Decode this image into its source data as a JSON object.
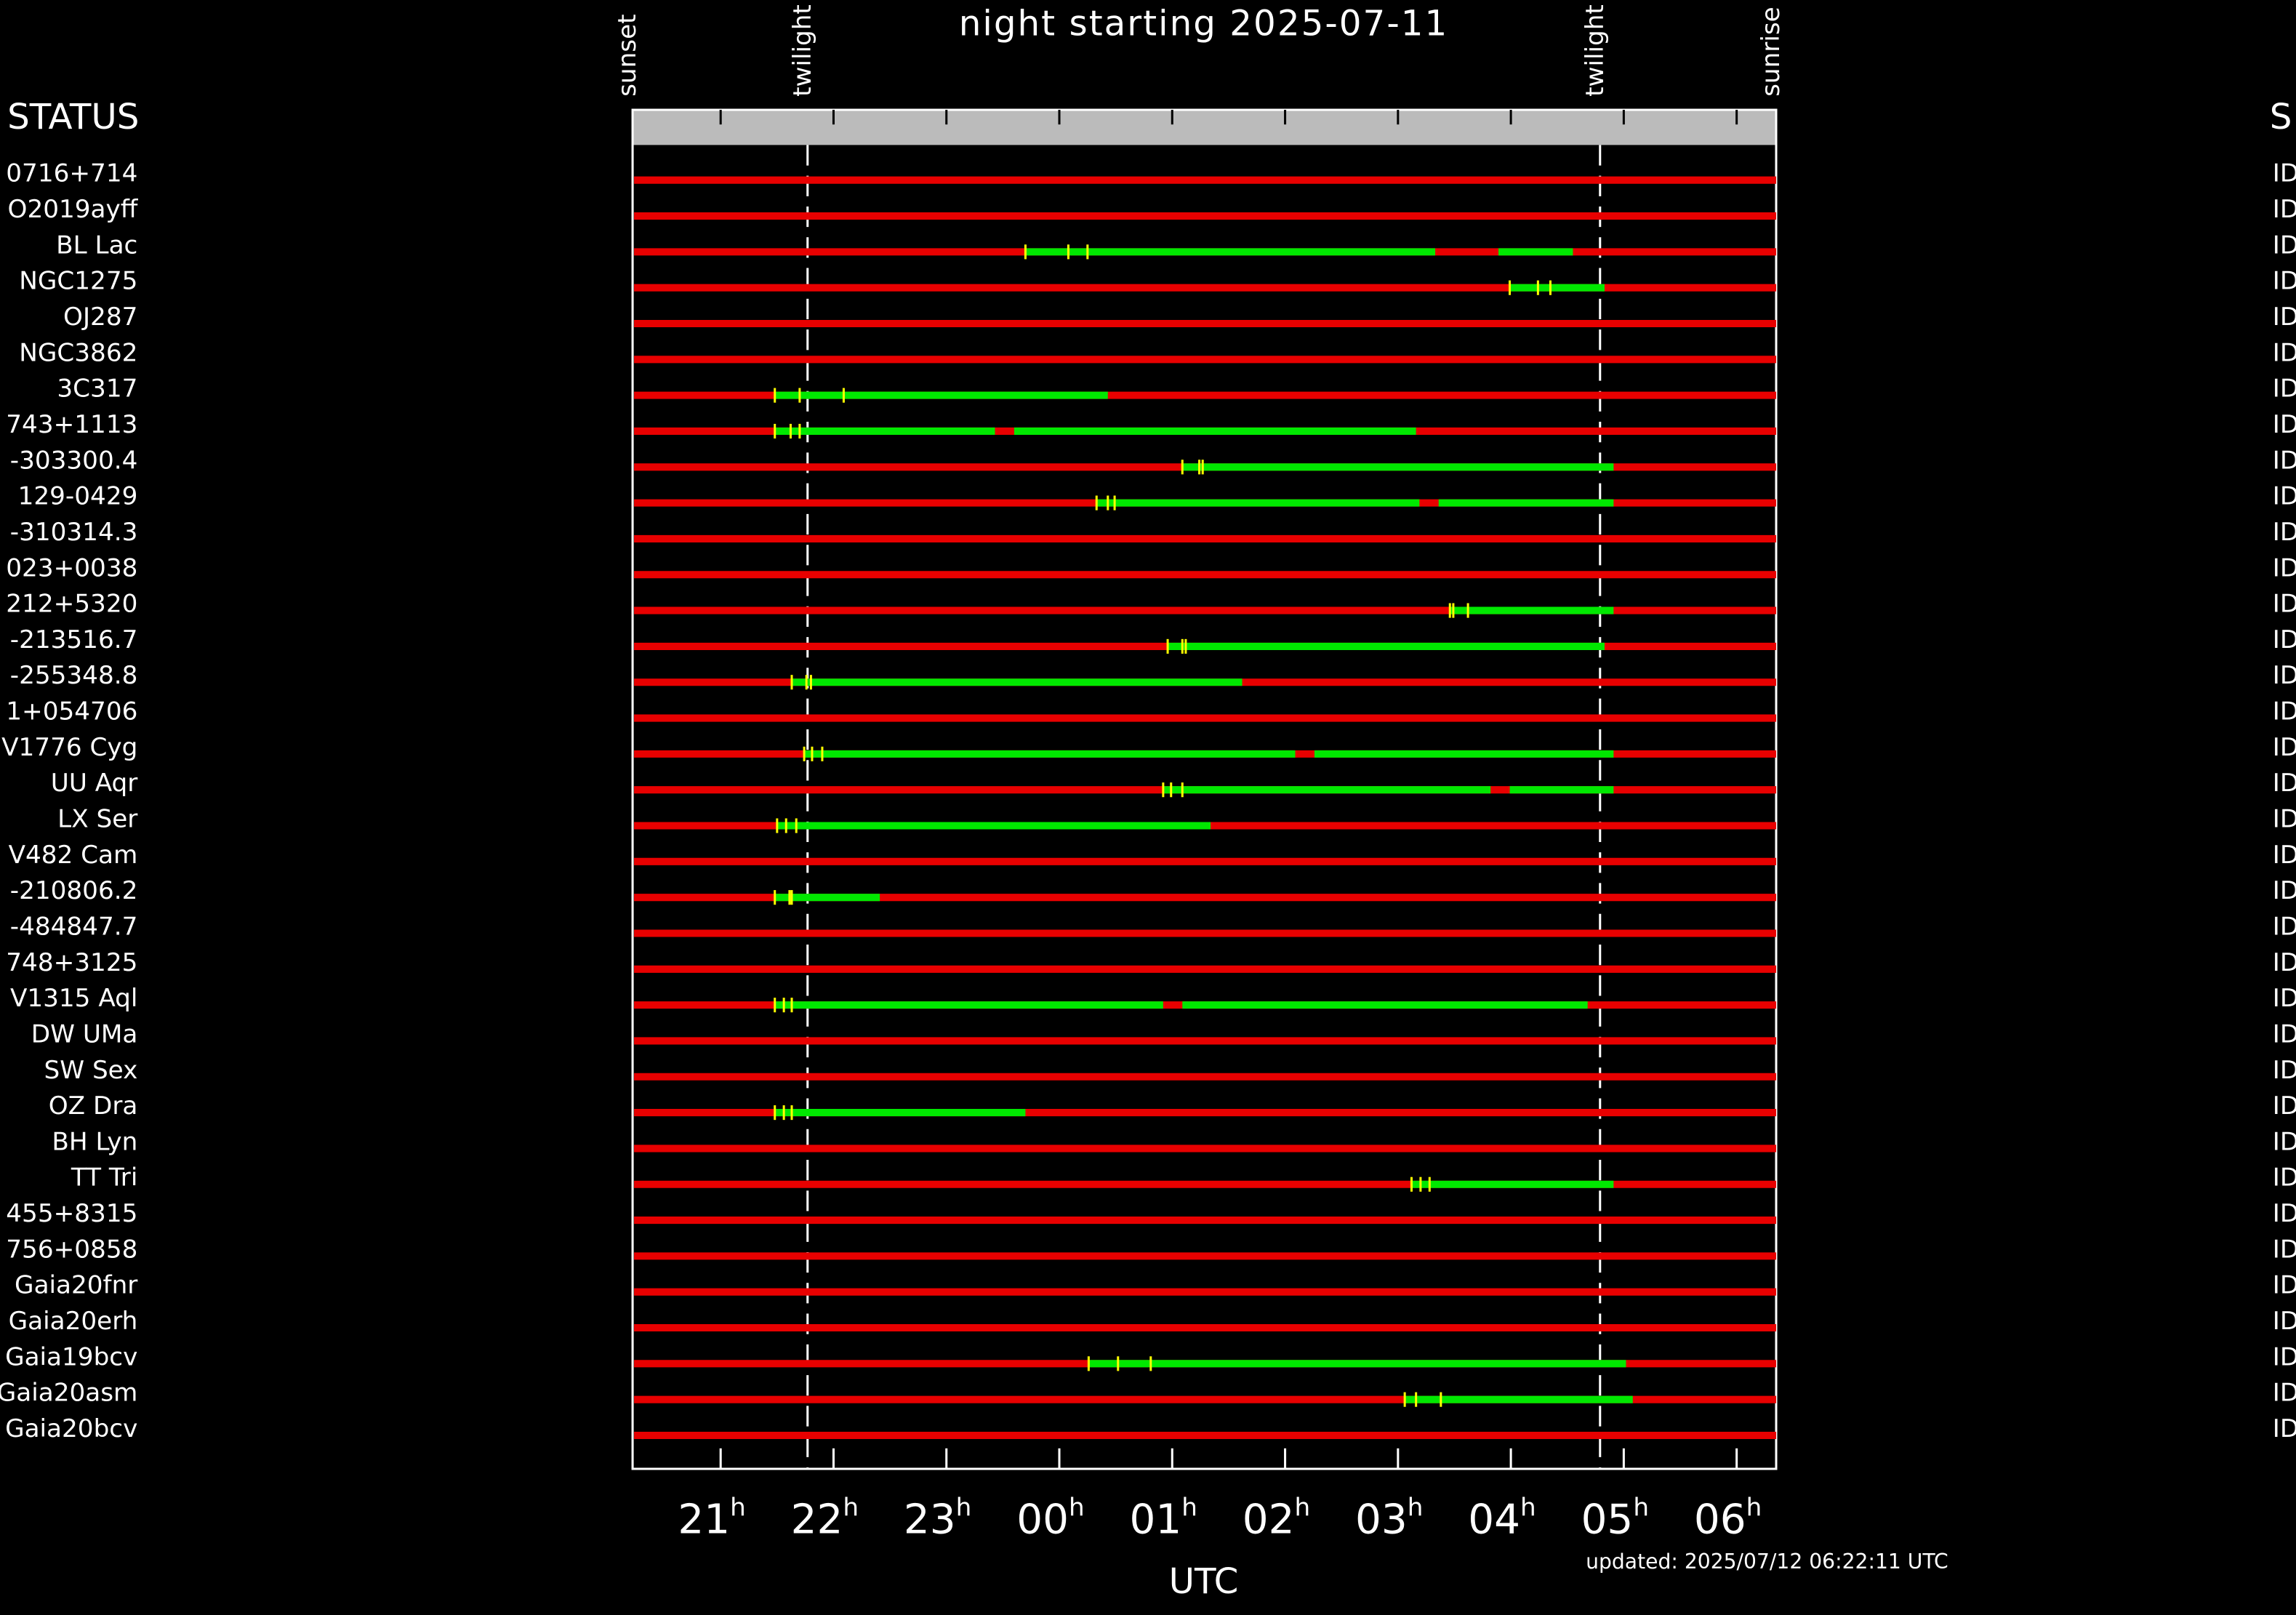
{
  "chart_data": {
    "type": "timeline",
    "title": "night starting 2025-07-11",
    "status_header": "STATUS",
    "right_header": "S",
    "xlabel": "UTC",
    "xtick_unit": "h",
    "updated": "updated: 2025/07/12 06:22:11 UTC",
    "xlim": [
      20.22,
      30.35
    ],
    "xticks": [
      21,
      22,
      23,
      {
        "value": 24,
        "label": "00"
      },
      {
        "value": 25,
        "label": "01"
      },
      {
        "value": 26,
        "label": "02"
      },
      {
        "value": 27,
        "label": "03"
      },
      {
        "value": 28,
        "label": "04"
      },
      {
        "value": 29,
        "label": "05"
      },
      {
        "value": 30,
        "label": "06"
      }
    ],
    "events": [
      {
        "name": "sunset",
        "x": 20.22
      },
      {
        "name": "twilight",
        "x": 21.77
      },
      {
        "name": "twilight",
        "x": 28.79
      },
      {
        "name": "sunrise",
        "x": 30.35
      }
    ],
    "colors": {
      "unobservable": "#e80000",
      "observable": "#00e800",
      "marker": "#ffff00"
    },
    "rows": [
      {
        "name": "0716+714",
        "status": "ID",
        "segments": [],
        "markers": []
      },
      {
        "name": "O2019ayff",
        "status": "ID",
        "segments": [],
        "markers": []
      },
      {
        "name": "BL Lac",
        "status": "ID",
        "segments": [
          [
            23.7,
            27.33
          ],
          [
            27.89,
            28.55
          ]
        ],
        "markers": [
          23.7,
          24.08,
          24.25
        ]
      },
      {
        "name": "NGC1275",
        "status": "ID",
        "segments": [
          [
            27.99,
            28.83
          ]
        ],
        "markers": [
          27.99,
          28.24,
          28.35
        ]
      },
      {
        "name": "OJ287",
        "status": "ID",
        "segments": [],
        "markers": []
      },
      {
        "name": "NGC3862",
        "status": "ID",
        "segments": [],
        "markers": []
      },
      {
        "name": "3C317",
        "status": "ID",
        "segments": [
          [
            21.48,
            24.43
          ]
        ],
        "markers": [
          21.48,
          21.7,
          22.09
        ]
      },
      {
        "name": "743+1113",
        "status": "ID",
        "segments": [
          [
            21.48,
            23.43
          ],
          [
            23.6,
            27.16
          ]
        ],
        "markers": [
          21.48,
          21.62,
          21.7
        ]
      },
      {
        "name": "-303300.4",
        "status": "ID",
        "segments": [
          [
            25.09,
            28.91
          ]
        ],
        "markers": [
          25.09,
          25.24,
          25.27
        ]
      },
      {
        "name": "129-0429",
        "status": "ID",
        "segments": [
          [
            24.33,
            27.19
          ],
          [
            27.36,
            28.91
          ]
        ],
        "markers": [
          24.33,
          24.43,
          24.49
        ]
      },
      {
        "name": "-310314.3",
        "status": "ID",
        "segments": [],
        "markers": []
      },
      {
        "name": "023+0038",
        "status": "ID",
        "segments": [],
        "markers": []
      },
      {
        "name": "212+5320",
        "status": "ID",
        "segments": [
          [
            27.46,
            28.91
          ]
        ],
        "markers": [
          27.46,
          27.49,
          27.62
        ]
      },
      {
        "name": "-213516.7",
        "status": "ID",
        "segments": [
          [
            24.96,
            28.83
          ]
        ],
        "markers": [
          24.96,
          25.09,
          25.12
        ]
      },
      {
        "name": "-255348.8",
        "status": "ID",
        "segments": [
          [
            21.63,
            25.62
          ]
        ],
        "markers": [
          21.63,
          21.76,
          21.8
        ]
      },
      {
        "name": "1+054706",
        "status": "ID",
        "segments": [],
        "markers": []
      },
      {
        "name": "V1776 Cyg",
        "status": "ID",
        "segments": [
          [
            21.74,
            26.09
          ],
          [
            26.26,
            28.91
          ]
        ],
        "markers": [
          21.74,
          21.81,
          21.9
        ]
      },
      {
        "name": "UU Aqr",
        "status": "ID",
        "segments": [
          [
            24.92,
            27.82
          ],
          [
            27.99,
            28.91
          ]
        ],
        "markers": [
          24.92,
          24.99,
          25.09
        ]
      },
      {
        "name": "LX Ser",
        "status": "ID",
        "segments": [
          [
            21.5,
            25.34
          ]
        ],
        "markers": [
          21.5,
          21.58,
          21.67
        ]
      },
      {
        "name": "V482 Cam",
        "status": "ID",
        "segments": [],
        "markers": []
      },
      {
        "name": "-210806.2",
        "status": "ID",
        "segments": [
          [
            21.48,
            22.41
          ]
        ],
        "markers": [
          21.48,
          21.61,
          21.63
        ]
      },
      {
        "name": "-484847.7",
        "status": "ID",
        "segments": [],
        "markers": []
      },
      {
        "name": "748+3125",
        "status": "ID",
        "segments": [],
        "markers": []
      },
      {
        "name": "V1315 Aql",
        "status": "ID",
        "segments": [
          [
            21.48,
            24.92
          ],
          [
            25.09,
            28.68
          ]
        ],
        "markers": [
          21.48,
          21.56,
          21.63
        ]
      },
      {
        "name": "DW UMa",
        "status": "ID",
        "segments": [],
        "markers": []
      },
      {
        "name": "SW Sex",
        "status": "ID",
        "segments": [],
        "markers": []
      },
      {
        "name": "OZ Dra",
        "status": "ID",
        "segments": [
          [
            21.48,
            23.7
          ]
        ],
        "markers": [
          21.48,
          21.56,
          21.63
        ]
      },
      {
        "name": "BH Lyn",
        "status": "ID",
        "segments": [],
        "markers": []
      },
      {
        "name": "TT Tri",
        "status": "ID",
        "segments": [
          [
            27.12,
            28.91
          ]
        ],
        "markers": [
          27.12,
          27.2,
          27.28
        ]
      },
      {
        "name": "455+8315",
        "status": "ID",
        "segments": [],
        "markers": []
      },
      {
        "name": "756+0858",
        "status": "ID",
        "segments": [],
        "markers": []
      },
      {
        "name": "Gaia20fnr",
        "status": "ID",
        "segments": [],
        "markers": []
      },
      {
        "name": "Gaia20erh",
        "status": "ID",
        "segments": [],
        "markers": []
      },
      {
        "name": "Gaia19bcv",
        "status": "ID",
        "segments": [
          [
            24.26,
            29.02
          ]
        ],
        "markers": [
          24.26,
          24.52,
          24.81
        ]
      },
      {
        "name": "Gaia20asm",
        "status": "ID",
        "segments": [
          [
            27.06,
            29.08
          ]
        ],
        "markers": [
          27.06,
          27.16,
          27.38
        ]
      },
      {
        "name": "Gaia20bcv",
        "status": "ID",
        "segments": [],
        "markers": []
      }
    ]
  }
}
